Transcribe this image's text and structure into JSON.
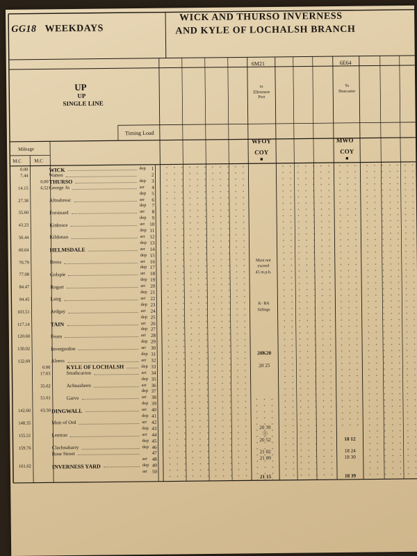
{
  "header": {
    "table_code": "GG18",
    "day_type": "WEEKDAYS",
    "title_line1": "WICK AND THURSO INVERNESS",
    "title_line2": "AND KYLE OF LOCHALSH BRANCH"
  },
  "direction": {
    "main": "UP",
    "sub": "UP",
    "line": "SINGLE LINE"
  },
  "labels": {
    "timing_load": "Timing Load",
    "mileage": "Mileage",
    "mc1": "M.C",
    "mc2": "M.C"
  },
  "columns": [
    {
      "headcode": "6M21",
      "destination_to": "to",
      "destination": "Ellesmere Port",
      "type": "WFOY",
      "operator": "COY",
      "marker": "■"
    },
    {
      "headcode": "6E64",
      "destination_to": "To",
      "destination": "Doncaster",
      "type": "MWO",
      "operator": "COY",
      "marker": "■"
    }
  ],
  "rows": [
    {
      "n": "1",
      "m1": "0.00",
      "m2": "",
      "name": "WICK",
      "ad": "dep",
      "style": "bold"
    },
    {
      "n": "2",
      "m1": "7.44",
      "m2": "",
      "name": "Watten",
      "ad": "",
      "style": ""
    },
    {
      "n": "3",
      "m1": "",
      "m2": "0.00",
      "name": "THURSO",
      "ad": "dep",
      "style": "bold"
    },
    {
      "n": "4",
      "m1": "14.15",
      "m2": "6.52",
      "name": "George Jn",
      "ad": "arr",
      "style": ""
    },
    {
      "n": "5",
      "m1": "",
      "m2": "",
      "name": "",
      "ad": "dep",
      "style": ""
    },
    {
      "n": "6",
      "m1": "27.38",
      "m2": "",
      "name": "Altnabreac",
      "ad": "arr",
      "style": ""
    },
    {
      "n": "7",
      "m1": "",
      "m2": "",
      "name": "",
      "ad": "dep",
      "style": ""
    },
    {
      "n": "8",
      "m1": "35.60",
      "m2": "",
      "name": "Forsinard",
      "ad": "arr",
      "style": ""
    },
    {
      "n": "9",
      "m1": "",
      "m2": "",
      "name": "",
      "ad": "dep",
      "style": ""
    },
    {
      "n": "10",
      "m1": "43.23",
      "m2": "",
      "name": "Kinbrace",
      "ad": "arr",
      "style": ""
    },
    {
      "n": "11",
      "m1": "",
      "m2": "",
      "name": "",
      "ad": "dep",
      "style": ""
    },
    {
      "n": "12",
      "m1": "50.44",
      "m2": "",
      "name": "Kildonan",
      "ad": "arr",
      "style": ""
    },
    {
      "n": "13",
      "m1": "",
      "m2": "",
      "name": "",
      "ad": "dep",
      "style": ""
    },
    {
      "n": "14",
      "m1": "60.04",
      "m2": "",
      "name": "HELMSDALE",
      "ad": "arr",
      "style": "bold"
    },
    {
      "n": "15",
      "m1": "",
      "m2": "",
      "name": "",
      "ad": "dep",
      "style": ""
    },
    {
      "n": "16",
      "m1": "70.79",
      "m2": "",
      "name": "Brora",
      "ad": "arr",
      "style": ""
    },
    {
      "n": "17",
      "m1": "",
      "m2": "",
      "name": "",
      "ad": "dep",
      "style": ""
    },
    {
      "n": "18",
      "m1": "77.08",
      "m2": "",
      "name": "Golspie",
      "ad": "arr",
      "style": ""
    },
    {
      "n": "19",
      "m1": "",
      "m2": "",
      "name": "",
      "ad": "dep",
      "style": ""
    },
    {
      "n": "20",
      "m1": "84.47",
      "m2": "",
      "name": "Rogart",
      "ad": "arr",
      "style": ""
    },
    {
      "n": "21",
      "m1": "",
      "m2": "",
      "name": "",
      "ad": "dep",
      "style": ""
    },
    {
      "n": "22",
      "m1": "94.45",
      "m2": "",
      "name": "Lairg",
      "ad": "arr",
      "style": ""
    },
    {
      "n": "23",
      "m1": "",
      "m2": "",
      "name": "",
      "ad": "dep",
      "style": ""
    },
    {
      "n": "24",
      "m1": "103.51",
      "m2": "",
      "name": "Ardgay",
      "ad": "arr",
      "style": ""
    },
    {
      "n": "25",
      "m1": "",
      "m2": "",
      "name": "",
      "ad": "dep",
      "style": ""
    },
    {
      "n": "26",
      "m1": "117.14",
      "m2": "",
      "name": "TAIN",
      "ad": "arr",
      "style": "bold"
    },
    {
      "n": "27",
      "m1": "",
      "m2": "",
      "name": "",
      "ad": "dep",
      "style": ""
    },
    {
      "n": "28",
      "m1": "120.60",
      "m2": "",
      "name": "Fearn",
      "ad": "arr",
      "style": ""
    },
    {
      "n": "29",
      "m1": "",
      "m2": "",
      "name": "",
      "ad": "dep",
      "style": ""
    },
    {
      "n": "30",
      "m1": "130.02",
      "m2": "",
      "name": "Invergordon",
      "ad": "arr",
      "style": ""
    },
    {
      "n": "31",
      "m1": "",
      "m2": "",
      "name": "",
      "ad": "dep",
      "style": ""
    },
    {
      "n": "32",
      "m1": "132.69",
      "m2": "",
      "name": "Alness",
      "ad": "arr",
      "style": ""
    },
    {
      "n": "33",
      "m1": "",
      "m2": "0.00",
      "name": "KYLE OF LOCHALSH",
      "ad": "dep",
      "style": "bold-indent"
    },
    {
      "n": "34",
      "m1": "",
      "m2": "17.63",
      "name": "Strathcarron",
      "ad": "arr",
      "style": "indent"
    },
    {
      "n": "35",
      "m1": "",
      "m2": "",
      "name": "",
      "ad": "dep",
      "style": ""
    },
    {
      "n": "36",
      "m1": "",
      "m2": "35.62",
      "name": "Achnasheen",
      "ad": "arr",
      "style": "indent"
    },
    {
      "n": "37",
      "m1": "",
      "m2": "",
      "name": "",
      "ad": "dep",
      "style": ""
    },
    {
      "n": "38",
      "m1": "",
      "m2": "51.61",
      "name": "Garve",
      "ad": "arr",
      "style": "indent"
    },
    {
      "n": "39",
      "m1": "",
      "m2": "",
      "name": "",
      "ad": "dep",
      "style": ""
    },
    {
      "n": "40",
      "m1": "142.60",
      "m2": "63.50",
      "name": "DINGWALL",
      "ad": "arr",
      "style": "bold"
    },
    {
      "n": "41",
      "m1": "",
      "m2": "",
      "name": "",
      "ad": "dep",
      "style": ""
    },
    {
      "n": "42",
      "m1": "148.35",
      "m2": "",
      "name": "Muir of Ord",
      "ad": "arr",
      "style": ""
    },
    {
      "n": "43",
      "m1": "",
      "m2": "",
      "name": "",
      "ad": "dep",
      "style": ""
    },
    {
      "n": "44",
      "m1": "155.51",
      "m2": "",
      "name": "Lentran",
      "ad": "arr",
      "style": ""
    },
    {
      "n": "45",
      "m1": "",
      "m2": "",
      "name": "",
      "ad": "dep",
      "style": ""
    },
    {
      "n": "46",
      "m1": "159.76",
      "m2": "",
      "name": "Clachnaharry",
      "ad": "dep",
      "style": ""
    },
    {
      "n": "47",
      "m1": "",
      "m2": "",
      "name": "Rose Street",
      "ad": "",
      "style": ""
    },
    {
      "n": "48",
      "m1": "",
      "m2": "",
      "name": "",
      "ad": "arr",
      "style": ""
    },
    {
      "n": "49",
      "m1": "161.62",
      "m2": "",
      "name": "INVERNESS YARD",
      "ad": "dep",
      "style": "bold"
    },
    {
      "n": "50",
      "m1": "",
      "m2": "",
      "name": "",
      "ad": "arr",
      "style": ""
    }
  ],
  "col1_entries": [
    {
      "row": 16,
      "text": "Must not",
      "kind": "note"
    },
    {
      "row": 17,
      "text": "exceed",
      "kind": "note"
    },
    {
      "row": 18,
      "text": "45 m.p.h.",
      "kind": "note"
    },
    {
      "row": 23,
      "text": "K- BA",
      "kind": "note"
    },
    {
      "row": 24,
      "text": "Sidings",
      "kind": "note"
    },
    {
      "row": 31,
      "text": "20K20",
      "kind": "bold"
    },
    {
      "row": 33,
      "text": "20 25",
      "kind": "time"
    },
    {
      "row": 43,
      "text": "20 39",
      "kind": "time"
    },
    {
      "row": 44,
      "text": "ⓩ",
      "kind": "time"
    },
    {
      "row": 45,
      "text": "20 52",
      "kind": "time"
    },
    {
      "row": 47,
      "text": "21 02",
      "kind": "time"
    },
    {
      "row": 48,
      "text": "21 09",
      "kind": "time"
    },
    {
      "row": 51,
      "text": "21 15",
      "kind": "bold"
    }
  ],
  "col2_entries": [
    {
      "row": 45,
      "text": "18 12",
      "kind": "bold"
    },
    {
      "row": 47,
      "text": "18 24",
      "kind": "time"
    },
    {
      "row": 48,
      "text": "18 30",
      "kind": "time"
    },
    {
      "row": 51,
      "text": "18 39",
      "kind": "bold"
    }
  ]
}
